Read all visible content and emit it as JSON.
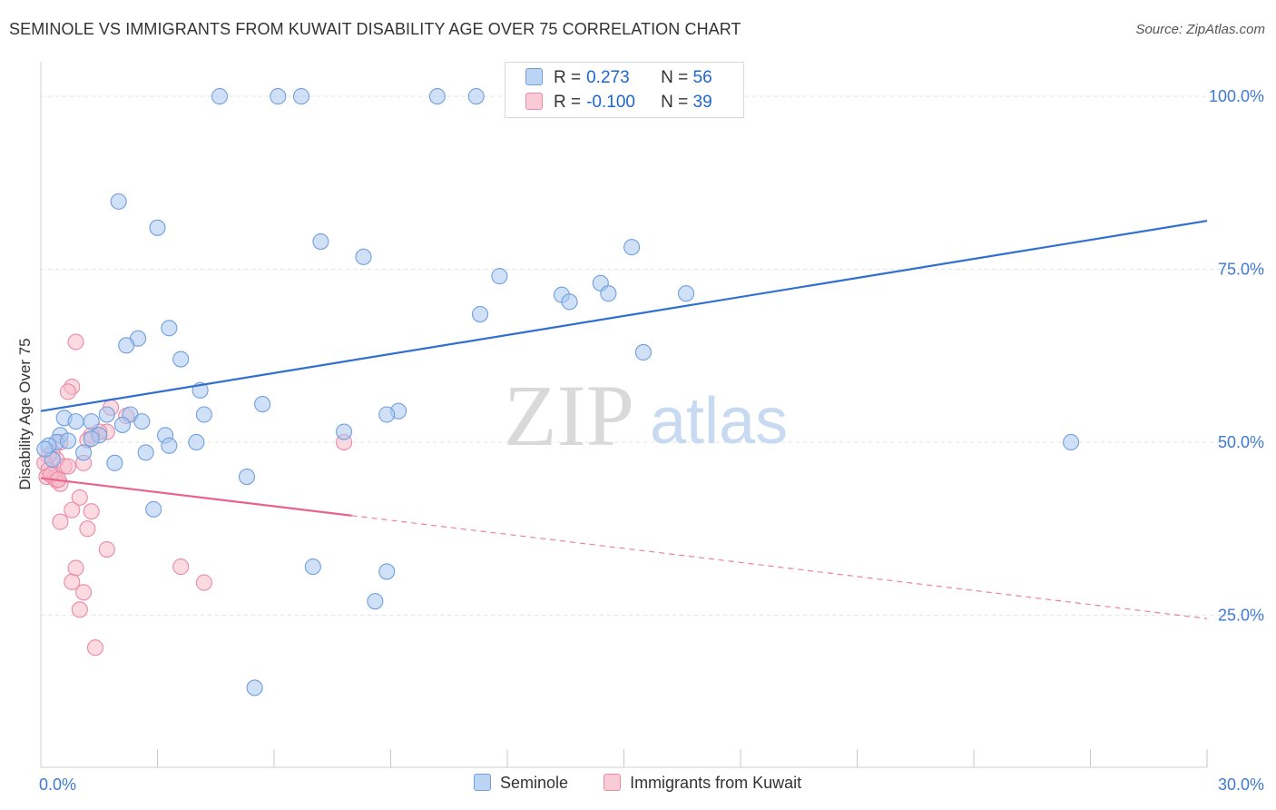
{
  "title": "SEMINOLE VS IMMIGRANTS FROM KUWAIT DISABILITY AGE OVER 75 CORRELATION CHART",
  "source": "Source: ZipAtlas.com",
  "watermark": {
    "zip": "ZIP",
    "atlas": "atlas"
  },
  "colors": {
    "seminole_fill": "#a9c8f0",
    "seminole_stroke": "#6f9fdf",
    "seminole_line": "#2f6fd1",
    "kuwait_fill": "#f7bccb",
    "kuwait_stroke": "#e98aa6",
    "kuwait_line": "#e8628c",
    "tick_text": "#3f7ad6",
    "grid": "#e3e3e3"
  },
  "legend_stats": [
    {
      "label_r": "R =",
      "r": "0.273",
      "label_n": "N =",
      "n": "56"
    },
    {
      "label_r": "R =",
      "r": "-0.100",
      "label_n": "N =",
      "n": "39"
    }
  ],
  "legend": [
    "Seminole",
    "Immigrants from Kuwait"
  ],
  "chart_data": {
    "type": "scatter",
    "xlabel": "",
    "ylabel": "Disability Age Over 75",
    "xlim": [
      0,
      30
    ],
    "ylim": [
      3,
      105
    ],
    "x_tick_labels": [
      {
        "value": 0,
        "label": "0.0%"
      },
      {
        "value": 30,
        "label": "30.0%"
      }
    ],
    "y_tick_labels": [
      {
        "value": 25,
        "label": "25.0%"
      },
      {
        "value": 50,
        "label": "50.0%"
      },
      {
        "value": 75,
        "label": "75.0%"
      },
      {
        "value": 100,
        "label": "100.0%"
      }
    ],
    "y_gridlines": [
      25,
      50,
      75,
      100
    ],
    "x_minor_ticks": [
      3,
      6,
      9,
      12,
      15,
      18,
      21,
      24,
      27,
      30
    ],
    "series": [
      {
        "name": "Seminole",
        "trend": {
          "x0": 0,
          "y0": 54.5,
          "x1": 30,
          "y1": 82.0,
          "dashed_from": null
        },
        "points": [
          [
            4.6,
            100.0
          ],
          [
            6.1,
            100.0
          ],
          [
            6.7,
            100.0
          ],
          [
            10.2,
            100.0
          ],
          [
            11.2,
            100.0
          ],
          [
            2.0,
            84.8
          ],
          [
            3.0,
            81.0
          ],
          [
            7.2,
            79.0
          ],
          [
            8.3,
            76.8
          ],
          [
            15.2,
            78.2
          ],
          [
            11.8,
            74.0
          ],
          [
            14.4,
            73.0
          ],
          [
            13.4,
            71.3
          ],
          [
            13.6,
            70.3
          ],
          [
            14.6,
            71.5
          ],
          [
            16.6,
            71.5
          ],
          [
            11.3,
            68.5
          ],
          [
            3.3,
            66.5
          ],
          [
            2.5,
            65.0
          ],
          [
            2.2,
            64.0
          ],
          [
            15.5,
            63.0
          ],
          [
            3.6,
            62.0
          ],
          [
            4.1,
            57.5
          ],
          [
            5.7,
            55.5
          ],
          [
            9.2,
            54.5
          ],
          [
            8.9,
            54.0
          ],
          [
            4.2,
            54.0
          ],
          [
            2.3,
            54.0
          ],
          [
            1.7,
            54.0
          ],
          [
            0.6,
            53.5
          ],
          [
            0.9,
            53.0
          ],
          [
            1.3,
            53.0
          ],
          [
            2.1,
            52.5
          ],
          [
            2.6,
            53.0
          ],
          [
            7.8,
            51.5
          ],
          [
            0.5,
            51.0
          ],
          [
            1.5,
            51.0
          ],
          [
            3.2,
            51.0
          ],
          [
            1.3,
            50.5
          ],
          [
            3.3,
            49.5
          ],
          [
            4.0,
            50.0
          ],
          [
            0.4,
            50.0
          ],
          [
            0.2,
            49.5
          ],
          [
            1.1,
            48.5
          ],
          [
            2.7,
            48.5
          ],
          [
            1.9,
            47.0
          ],
          [
            0.3,
            47.5
          ],
          [
            5.3,
            45.0
          ],
          [
            26.5,
            50.0
          ],
          [
            2.9,
            40.3
          ],
          [
            7.0,
            32.0
          ],
          [
            8.9,
            31.3
          ],
          [
            8.6,
            27.0
          ],
          [
            5.5,
            14.5
          ],
          [
            0.1,
            49.0
          ],
          [
            0.7,
            50.2
          ]
        ]
      },
      {
        "name": "Immigrants from Kuwait",
        "trend": {
          "x0": 0,
          "y0": 44.8,
          "x1": 30,
          "y1": 24.5,
          "dashed_from": 8.0
        },
        "points": [
          [
            0.9,
            64.5
          ],
          [
            0.8,
            58.0
          ],
          [
            0.7,
            57.3
          ],
          [
            1.8,
            55.0
          ],
          [
            2.2,
            53.8
          ],
          [
            1.7,
            51.5
          ],
          [
            1.5,
            51.5
          ],
          [
            1.3,
            51.0
          ],
          [
            1.2,
            50.3
          ],
          [
            0.5,
            50.0
          ],
          [
            7.8,
            50.0
          ],
          [
            0.3,
            48.5
          ],
          [
            0.2,
            48.0
          ],
          [
            0.4,
            47.5
          ],
          [
            0.1,
            47.0
          ],
          [
            1.1,
            47.0
          ],
          [
            0.6,
            46.5
          ],
          [
            0.7,
            46.5
          ],
          [
            0.2,
            46.0
          ],
          [
            0.3,
            45.5
          ],
          [
            0.15,
            45.0
          ],
          [
            0.35,
            44.8
          ],
          [
            0.4,
            44.5
          ],
          [
            0.5,
            44.0
          ],
          [
            0.25,
            45.3
          ],
          [
            1.0,
            42.0
          ],
          [
            0.8,
            40.2
          ],
          [
            1.3,
            40.0
          ],
          [
            0.5,
            38.5
          ],
          [
            1.2,
            37.5
          ],
          [
            1.7,
            34.5
          ],
          [
            0.9,
            31.8
          ],
          [
            3.6,
            32.0
          ],
          [
            0.8,
            29.8
          ],
          [
            4.2,
            29.7
          ],
          [
            1.1,
            28.3
          ],
          [
            1.0,
            25.8
          ],
          [
            1.4,
            20.3
          ],
          [
            0.45,
            44.6
          ]
        ]
      }
    ]
  }
}
